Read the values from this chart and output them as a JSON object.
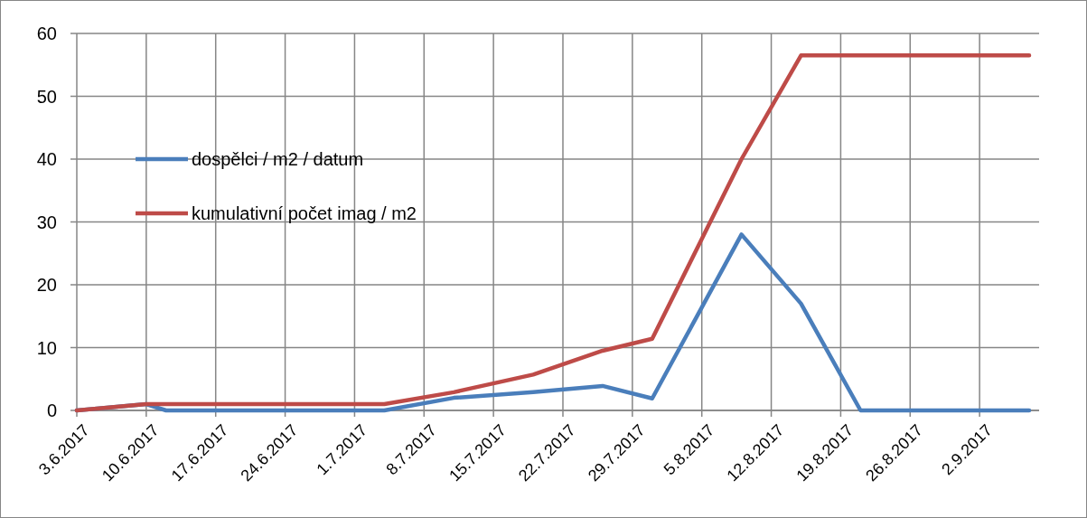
{
  "chart_data": {
    "type": "line",
    "x": [
      "2017-06-03",
      "2017-06-10",
      "2017-06-12",
      "2017-07-04",
      "2017-07-11",
      "2017-07-19",
      "2017-07-26",
      "2017-07-31",
      "2017-08-09",
      "2017-08-15",
      "2017-08-21",
      "2017-09-07"
    ],
    "series": [
      {
        "name": "dospělci / m2 / datum",
        "color": "#4a7ebb",
        "values": [
          0,
          1,
          0,
          0,
          2,
          2.9,
          3.9,
          1.9,
          28,
          17,
          0,
          0
        ]
      },
      {
        "name": "kumulativní počet imag / m2",
        "color": "#be4b48",
        "values": [
          0,
          1,
          1,
          1,
          2.9,
          5.7,
          9.5,
          11.4,
          40,
          56.5,
          56.5,
          56.5
        ]
      }
    ],
    "xlim": [
      "2017-06-03",
      "2017-09-08"
    ],
    "xticks": [
      {
        "value": "2017-06-03",
        "label": "3.6.2017"
      },
      {
        "value": "2017-06-10",
        "label": "10.6.2017"
      },
      {
        "value": "2017-06-17",
        "label": "17.6.2017"
      },
      {
        "value": "2017-06-24",
        "label": "24.6.2017"
      },
      {
        "value": "2017-07-01",
        "label": "1.7.2017"
      },
      {
        "value": "2017-07-08",
        "label": "8.7.2017"
      },
      {
        "value": "2017-07-15",
        "label": "15.7.2017"
      },
      {
        "value": "2017-07-22",
        "label": "22.7.2017"
      },
      {
        "value": "2017-07-29",
        "label": "29.7.2017"
      },
      {
        "value": "2017-08-05",
        "label": "5.8.2017"
      },
      {
        "value": "2017-08-12",
        "label": "12.8.2017"
      },
      {
        "value": "2017-08-19",
        "label": "19.8.2017"
      },
      {
        "value": "2017-08-26",
        "label": "26.8.2017"
      },
      {
        "value": "2017-09-02",
        "label": "2.9.2017"
      }
    ],
    "ylim": [
      0,
      60
    ],
    "yticks": [
      0,
      10,
      20,
      30,
      40,
      50,
      60
    ],
    "grid": true,
    "legend": "left",
    "marker": "none",
    "line_style": "solid"
  }
}
